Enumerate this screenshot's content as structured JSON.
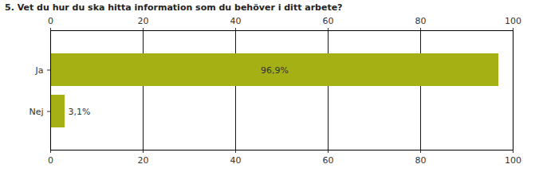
{
  "chart_data": {
    "type": "bar",
    "title": "5. Vet du hur du ska hitta information som du behöver i ditt arbete?",
    "orientation": "horizontal",
    "categories": [
      "Ja",
      "Nej"
    ],
    "values": [
      96.9,
      3.1
    ],
    "value_labels": [
      "96,9%",
      "3,1%"
    ],
    "data_labels": true,
    "color": "#a5b014",
    "xlim": [
      0,
      100
    ],
    "xticks": [
      0,
      20,
      40,
      60,
      80,
      100
    ],
    "grid": true
  }
}
